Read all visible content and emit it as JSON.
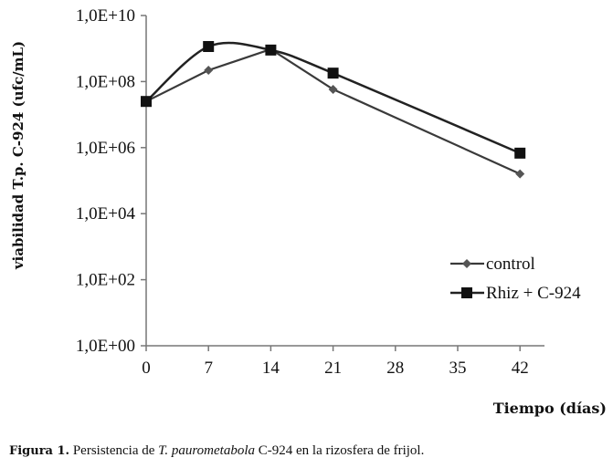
{
  "chart_data": {
    "type": "line",
    "title": "",
    "xlabel": "Tiempo (días)",
    "ylabel": "viabilidad T.p. C-924 (ufc/mL)",
    "yscale": "log",
    "ylim": [
      1,
      10000000000
    ],
    "xlim": [
      0,
      45
    ],
    "x": [
      0,
      7,
      14,
      21,
      42
    ],
    "x_ticks": [
      "0",
      "7",
      "14",
      "21",
      "28",
      "35",
      "42"
    ],
    "x_tick_values": [
      0,
      7,
      14,
      21,
      28,
      35,
      42
    ],
    "y_ticks": [
      "1,0E+00",
      "1,0E+02",
      "1,0E+04",
      "1,0E+06",
      "1,0E+08",
      "1,0E+10"
    ],
    "y_tick_values": [
      0,
      2,
      4,
      6,
      8,
      10
    ],
    "grid": false,
    "legend_position": "right",
    "series": [
      {
        "name": "control",
        "marker": "diamond",
        "smooth": false,
        "values": [
          25000000,
          220000000,
          950000000,
          58000000,
          160000
        ]
      },
      {
        "name": "Rhiz + C-924",
        "marker": "square",
        "smooth": true,
        "values": [
          25000000,
          1150000000,
          900000000,
          180000000,
          680000
        ]
      }
    ]
  },
  "caption": {
    "label": "Figura 1.",
    "text_before": " Persistencia de ",
    "italic": "T. paurometabola",
    "text_after": " C-924 en la rizosfera de frijol."
  },
  "colors": {
    "line": "#3a3a3a",
    "axis": "#777777"
  }
}
